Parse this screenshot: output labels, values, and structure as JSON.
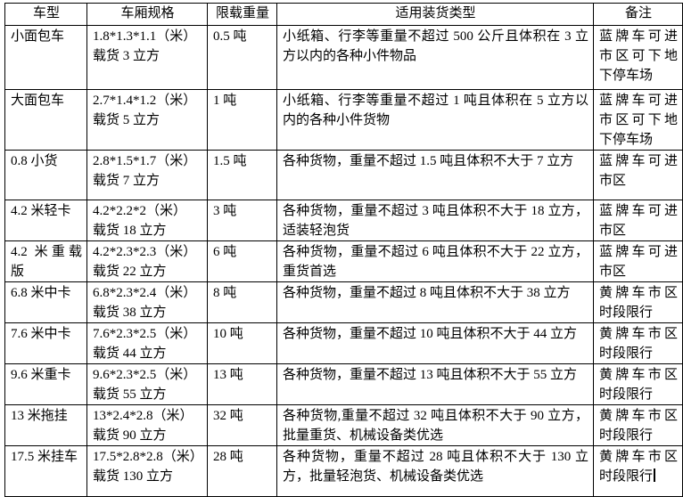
{
  "document": {
    "background_color": "#ffffff",
    "border_color": "#000000",
    "text_color": "#000000"
  },
  "table": {
    "headers": [
      "车型",
      "车厢规格",
      "限载重量",
      "适用装货类型",
      "备注"
    ],
    "rows": [
      {
        "vehicle": "小面包车",
        "spec_dimensions": "1.8*1.3*1.1（米）",
        "spec_volume": "载货 3 立方",
        "load_limit": "0.5 吨",
        "cargo_type": "小纸箱、行李等重量不超过 500 公斤且体积在 3 立方以内的各种小件物品",
        "remark": "蓝牌车可进市区可下地下停车场"
      },
      {
        "vehicle": "大面包车",
        "spec_dimensions": "2.7*1.4*1.2（米）",
        "spec_volume": "载货 5 立方",
        "load_limit": "1 吨",
        "cargo_type": "小纸箱、行李等重量不超过 1 吨且体积在 5 立方以内的各种小件货物",
        "remark": "蓝牌车可进市区可下地下停车场"
      },
      {
        "vehicle": "0.8 小货",
        "spec_dimensions": "2.8*1.5*1.7（米）",
        "spec_volume": "载货 7 立方",
        "load_limit": "1.5 吨",
        "cargo_type": "各种货物，重量不超过 1.5 吨且体积不大于 7 立方",
        "remark": "蓝牌车可进市区"
      },
      {
        "vehicle": "4.2 米轻卡",
        "spec_dimensions": "4.2*2.2*2（米）",
        "spec_volume": "载货 18 立方",
        "load_limit": "3 吨",
        "cargo_type": "各种货物，重量不超过 3 吨且体积不大于 18 立方，适装轻泡货",
        "remark": "蓝牌车可进市区"
      },
      {
        "vehicle": "4.2 米重载版",
        "spec_dimensions": "4.2*2.3*2.3（米）",
        "spec_volume": "载货 22 立方",
        "load_limit": "6 吨",
        "cargo_type": "各种货物，重量不超过 6 吨且体积不大于 22 立方，重货首选",
        "remark": "蓝牌车可进市区"
      },
      {
        "vehicle": "6.8 米中卡",
        "spec_dimensions": "6.8*2.3*2.4（米）",
        "spec_volume": "载货 38 立方",
        "load_limit": "8 吨",
        "cargo_type": "各种货物，重量不超过 8 吨且体积不大于 38 立方",
        "remark": "黄牌车市区时段限行"
      },
      {
        "vehicle": "7.6 米中卡",
        "spec_dimensions": "7.6*2.3*2.5（米）",
        "spec_volume": "载货 44 立方",
        "load_limit": "10 吨",
        "cargo_type": "各种货物，重量不超过 10 吨且体积不大于 44 立方",
        "remark": "黄牌车市区时段限行"
      },
      {
        "vehicle": "9.6 米重卡",
        "spec_dimensions": "9.6*2.3*2.5（米）",
        "spec_volume": "载货 55 立方",
        "load_limit": "13 吨",
        "cargo_type": "各种货物，重量不超过 13 吨且体积不大于 55 立方",
        "remark": "黄牌车市区时段限行"
      },
      {
        "vehicle": "13 米拖挂",
        "spec_dimensions": "13*2.4*2.8（米）",
        "spec_volume": "载货 90 立方",
        "load_limit": "32 吨",
        "cargo_type": "各种货物,重量不超过 32 吨且体积不大于 90 立方，批量重货、机械设备类优选",
        "remark": "黄牌车市区时段限行"
      },
      {
        "vehicle": "17.5 米挂车",
        "spec_dimensions": "17.5*2.8*2.8（米）",
        "spec_volume": "载货 130 立方",
        "load_limit": "28 吨",
        "cargo_type": "各种货物，重量不超过 28 吨且体积不大于 130 立方，批量轻泡货、机械设备类优选",
        "remark": "黄牌车市区时段限行"
      }
    ]
  }
}
